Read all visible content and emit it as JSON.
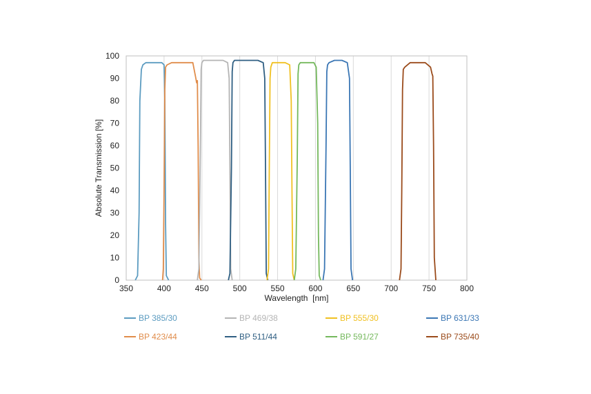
{
  "chart_data": {
    "type": "line",
    "title": "",
    "xlabel": "Wavelength  [nm]",
    "ylabel": "Absolute Transmission [%]",
    "xlim": [
      350,
      800
    ],
    "ylim": [
      0,
      100
    ],
    "x_ticks": [
      350,
      400,
      450,
      500,
      550,
      600,
      650,
      700,
      750,
      800
    ],
    "y_ticks": [
      0,
      10,
      20,
      30,
      40,
      50,
      60,
      70,
      80,
      90,
      100
    ],
    "grid": "vertical",
    "legend_position": "bottom",
    "series": [
      {
        "name": "BP 385/30",
        "color": "#5b9bc0",
        "x": [
          362,
          365,
          367,
          368,
          370,
          372,
          376,
          383,
          392,
          397,
          400,
          401,
          402,
          403,
          406
        ],
        "y": [
          0,
          2,
          30,
          80,
          94,
          96,
          97,
          97,
          97,
          97,
          96,
          80,
          25,
          2,
          0
        ]
      },
      {
        "name": "BP 423/44",
        "color": "#e08c4a",
        "x": [
          398,
          399,
          400,
          401,
          402,
          404,
          410,
          420,
          430,
          438,
          442,
          443,
          444,
          445,
          446,
          447,
          449
        ],
        "y": [
          0,
          5,
          40,
          85,
          95,
          96,
          97,
          97,
          97,
          97,
          90,
          88,
          89,
          60,
          10,
          1,
          0
        ]
      },
      {
        "name": "BP 469/38",
        "color": "#b4b4b4",
        "x": [
          444,
          446,
          448,
          449,
          450,
          452,
          460,
          470,
          478,
          484,
          486,
          487,
          488,
          490
        ],
        "y": [
          0,
          5,
          60,
          94,
          97,
          98,
          98,
          98,
          98,
          97,
          90,
          50,
          5,
          0
        ]
      },
      {
        "name": "BP 511/44",
        "color": "#2e5e82",
        "x": [
          485,
          487,
          489,
          490,
          491,
          493,
          500,
          512,
          524,
          531,
          533,
          534,
          535,
          537
        ],
        "y": [
          0,
          3,
          50,
          93,
          97,
          98,
          98,
          98,
          98,
          97,
          90,
          50,
          3,
          0
        ]
      },
      {
        "name": "BP 555/30",
        "color": "#f0c020",
        "x": [
          536,
          538,
          539,
          540,
          541,
          543,
          550,
          560,
          566,
          568,
          569,
          570,
          572
        ],
        "y": [
          0,
          5,
          50,
          90,
          95,
          97,
          97,
          97,
          96,
          80,
          40,
          3,
          0
        ]
      },
      {
        "name": "BP 591/27",
        "color": "#74b85c",
        "x": [
          572,
          574,
          576,
          577,
          578,
          580,
          590,
          598,
          601,
          603,
          604,
          605,
          607
        ],
        "y": [
          0,
          5,
          55,
          92,
          96,
          97,
          97,
          97,
          95,
          70,
          20,
          2,
          0
        ]
      },
      {
        "name": "BP 631/33",
        "color": "#3a76b4",
        "x": [
          610,
          612,
          614,
          615,
          616,
          618,
          625,
          635,
          642,
          645,
          646,
          647,
          649
        ],
        "y": [
          0,
          5,
          60,
          93,
          96,
          97,
          98,
          98,
          97,
          90,
          50,
          5,
          0
        ]
      },
      {
        "name": "BP 735/40",
        "color": "#9a4a1a",
        "x": [
          711,
          713,
          714,
          715,
          716,
          718,
          725,
          735,
          745,
          752,
          754,
          755,
          756,
          757,
          759
        ],
        "y": [
          0,
          5,
          40,
          85,
          94,
          95,
          97,
          97,
          97,
          95,
          92,
          91,
          60,
          10,
          0
        ]
      }
    ]
  }
}
